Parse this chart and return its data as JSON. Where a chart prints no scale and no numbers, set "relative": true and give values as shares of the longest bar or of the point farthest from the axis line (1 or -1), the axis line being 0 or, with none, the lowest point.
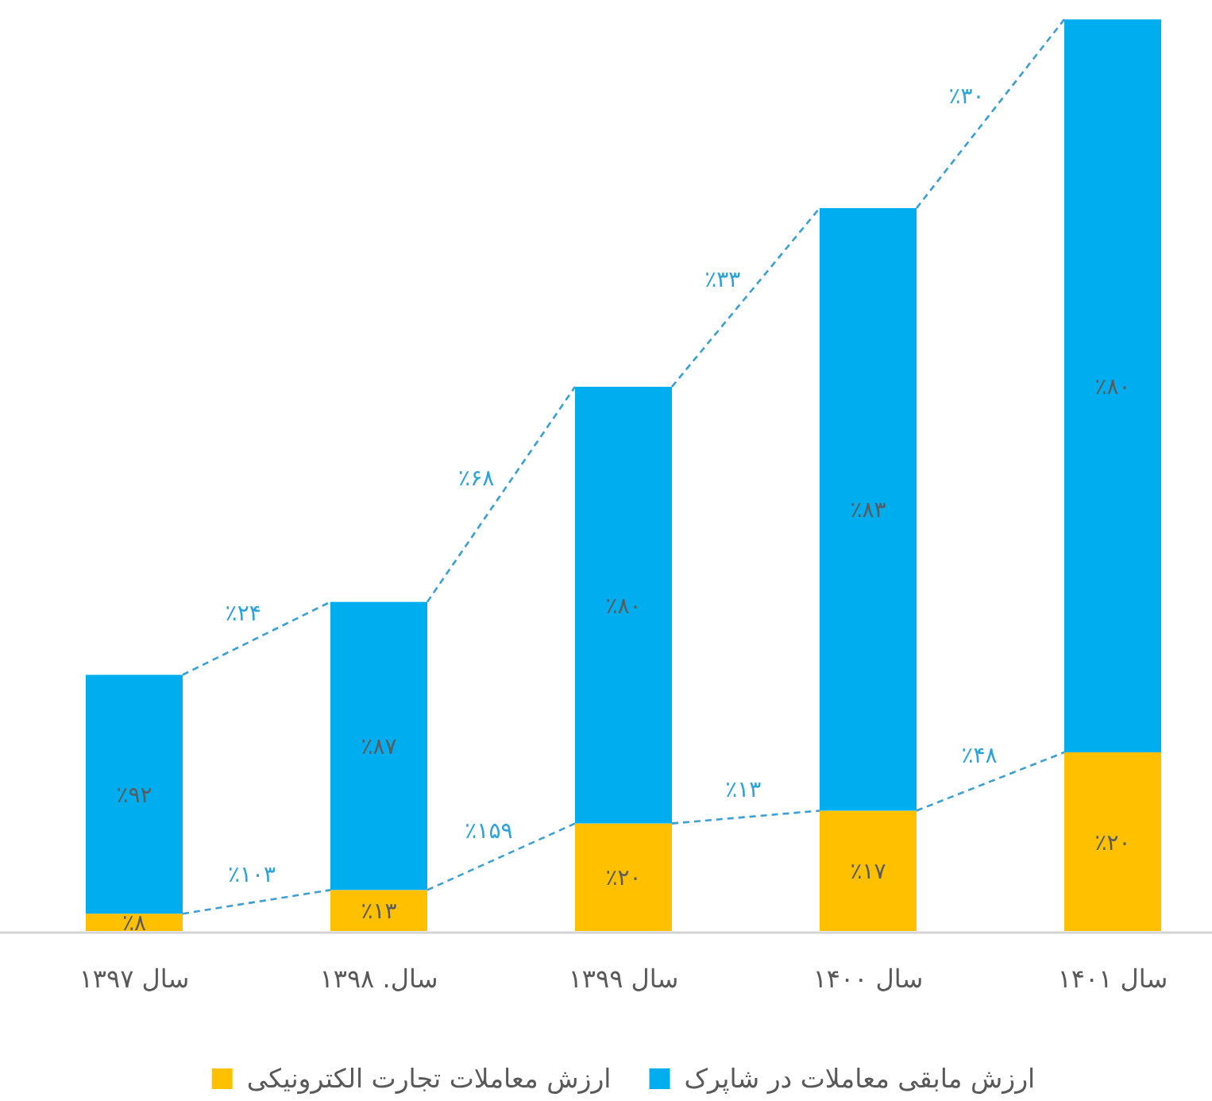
{
  "chart_data": {
    "type": "bar",
    "stacked": true,
    "relative": true,
    "categories": [
      "سال ۱۳۹۷",
      "سال. ۱۳۹۸",
      "سال ۱۳۹۹",
      "سال ۱۴۰۰",
      "سال ۱۴۰۱"
    ],
    "series": [
      {
        "name": "ارزش معاملات تجارت الکترونیکی",
        "color": "#ffc000",
        "values": [
          0.019,
          0.045,
          0.118,
          0.132,
          0.196
        ]
      },
      {
        "name": "ارزش مابقی معاملات در شاپرک",
        "color": "#00adef",
        "values": [
          0.262,
          0.316,
          0.479,
          0.661,
          0.804
        ]
      }
    ],
    "annotations": [
      "٪۲۴",
      "٪۶۸",
      "٪۳۳",
      "٪۳۰",
      "٪۱۰۳",
      "٪۱۵۹",
      "٪۱۳",
      "٪۴۸",
      "٪۸",
      "٪۱۳",
      "٪۲۰",
      "٪۱۷",
      "٪۲۰",
      "٪۹۲",
      "٪۸۷",
      "٪۸۰",
      "٪۸۳",
      "٪۸۰"
    ],
    "legend": "bottom"
  }
}
